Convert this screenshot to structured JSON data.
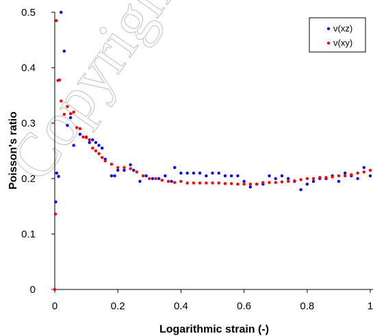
{
  "chart_data": {
    "type": "scatter",
    "title": "",
    "xlabel": "Logarithmic strain (-)",
    "ylabel": "Poisson's ratio",
    "xlim": [
      0,
      1
    ],
    "ylim": [
      0,
      0.5
    ],
    "x_ticks": [
      "0",
      "0.2",
      "0.4",
      "0.6",
      "0.8",
      "1"
    ],
    "y_ticks": [
      "0",
      "0.1",
      "0.2",
      "0.3",
      "0.4",
      "0.5"
    ],
    "grid": false,
    "legend_position": "top-right",
    "series": [
      {
        "name": "ν(xz)",
        "color": "#0000ff",
        "points": [
          [
            0.0,
            0.0
          ],
          [
            0.003,
            0.158
          ],
          [
            0.006,
            0.21
          ],
          [
            0.012,
            0.204
          ],
          [
            0.02,
            0.5
          ],
          [
            0.03,
            0.43
          ],
          [
            0.04,
            0.296
          ],
          [
            0.05,
            0.31
          ],
          [
            0.06,
            0.26
          ],
          [
            0.08,
            0.28
          ],
          [
            0.1,
            0.275
          ],
          [
            0.11,
            0.265
          ],
          [
            0.12,
            0.27
          ],
          [
            0.13,
            0.265
          ],
          [
            0.14,
            0.26
          ],
          [
            0.15,
            0.255
          ],
          [
            0.16,
            0.235
          ],
          [
            0.18,
            0.205
          ],
          [
            0.19,
            0.205
          ],
          [
            0.2,
            0.215
          ],
          [
            0.22,
            0.215
          ],
          [
            0.24,
            0.225
          ],
          [
            0.25,
            0.215
          ],
          [
            0.27,
            0.195
          ],
          [
            0.29,
            0.205
          ],
          [
            0.31,
            0.2
          ],
          [
            0.33,
            0.2
          ],
          [
            0.35,
            0.205
          ],
          [
            0.37,
            0.195
          ],
          [
            0.38,
            0.22
          ],
          [
            0.4,
            0.21
          ],
          [
            0.42,
            0.21
          ],
          [
            0.44,
            0.21
          ],
          [
            0.46,
            0.21
          ],
          [
            0.48,
            0.205
          ],
          [
            0.5,
            0.21
          ],
          [
            0.52,
            0.21
          ],
          [
            0.54,
            0.205
          ],
          [
            0.56,
            0.205
          ],
          [
            0.58,
            0.205
          ],
          [
            0.6,
            0.195
          ],
          [
            0.62,
            0.185
          ],
          [
            0.64,
            0.19
          ],
          [
            0.66,
            0.19
          ],
          [
            0.68,
            0.205
          ],
          [
            0.7,
            0.2
          ],
          [
            0.72,
            0.205
          ],
          [
            0.74,
            0.2
          ],
          [
            0.76,
            0.195
          ],
          [
            0.78,
            0.18
          ],
          [
            0.8,
            0.19
          ],
          [
            0.82,
            0.195
          ],
          [
            0.84,
            0.2
          ],
          [
            0.86,
            0.2
          ],
          [
            0.88,
            0.205
          ],
          [
            0.9,
            0.195
          ],
          [
            0.92,
            0.21
          ],
          [
            0.94,
            0.205
          ],
          [
            0.96,
            0.2
          ],
          [
            0.98,
            0.22
          ],
          [
            1.0,
            0.205
          ]
        ]
      },
      {
        "name": "ν(xy)",
        "color": "#ff0000",
        "points": [
          [
            0.0,
            0.0
          ],
          [
            0.002,
            0.136
          ],
          [
            0.005,
            0.485
          ],
          [
            0.01,
            0.377
          ],
          [
            0.015,
            0.378
          ],
          [
            0.02,
            0.34
          ],
          [
            0.03,
            0.316
          ],
          [
            0.04,
            0.33
          ],
          [
            0.05,
            0.317
          ],
          [
            0.06,
            0.32
          ],
          [
            0.07,
            0.292
          ],
          [
            0.08,
            0.29
          ],
          [
            0.09,
            0.275
          ],
          [
            0.1,
            0.274
          ],
          [
            0.11,
            0.27
          ],
          [
            0.12,
            0.255
          ],
          [
            0.13,
            0.25
          ],
          [
            0.14,
            0.245
          ],
          [
            0.15,
            0.238
          ],
          [
            0.16,
            0.232
          ],
          [
            0.18,
            0.226
          ],
          [
            0.2,
            0.22
          ],
          [
            0.22,
            0.22
          ],
          [
            0.24,
            0.218
          ],
          [
            0.26,
            0.212
          ],
          [
            0.28,
            0.205
          ],
          [
            0.3,
            0.2
          ],
          [
            0.32,
            0.2
          ],
          [
            0.34,
            0.197
          ],
          [
            0.36,
            0.195
          ],
          [
            0.38,
            0.193
          ],
          [
            0.4,
            0.195
          ],
          [
            0.42,
            0.192
          ],
          [
            0.44,
            0.192
          ],
          [
            0.46,
            0.192
          ],
          [
            0.48,
            0.192
          ],
          [
            0.5,
            0.192
          ],
          [
            0.52,
            0.192
          ],
          [
            0.54,
            0.191
          ],
          [
            0.56,
            0.191
          ],
          [
            0.58,
            0.19
          ],
          [
            0.6,
            0.19
          ],
          [
            0.62,
            0.19
          ],
          [
            0.64,
            0.19
          ],
          [
            0.66,
            0.193
          ],
          [
            0.68,
            0.193
          ],
          [
            0.7,
            0.193
          ],
          [
            0.72,
            0.194
          ],
          [
            0.74,
            0.195
          ],
          [
            0.76,
            0.196
          ],
          [
            0.78,
            0.198
          ],
          [
            0.8,
            0.2
          ],
          [
            0.82,
            0.2
          ],
          [
            0.84,
            0.202
          ],
          [
            0.86,
            0.202
          ],
          [
            0.88,
            0.203
          ],
          [
            0.9,
            0.205
          ],
          [
            0.92,
            0.205
          ],
          [
            0.94,
            0.207
          ],
          [
            0.96,
            0.21
          ],
          [
            0.98,
            0.212
          ],
          [
            1.0,
            0.215
          ]
        ]
      }
    ]
  }
}
